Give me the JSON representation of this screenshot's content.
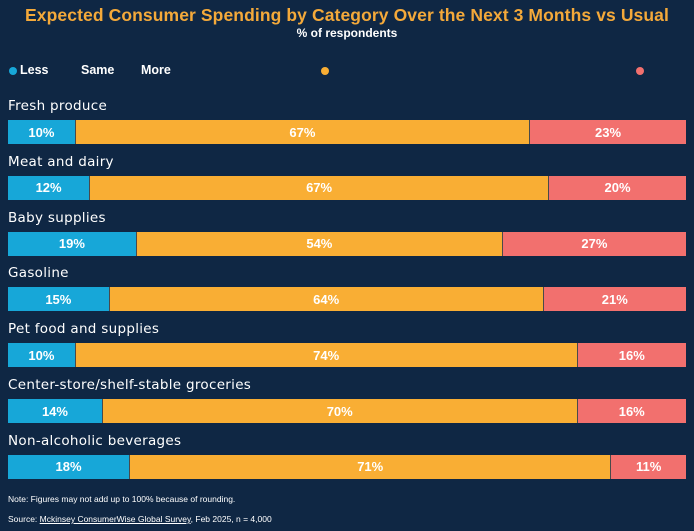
{
  "header": {
    "title": "Expected Consumer Spending by Category Over the Next 3 Months vs Usual",
    "subtitle": "% of respondents"
  },
  "legend": {
    "less": "Less",
    "same": "Same",
    "more": "More"
  },
  "colors": {
    "background": "#0f2744",
    "less": "#17a7d8",
    "same": "#f9ae34",
    "more": "#f2706e",
    "title": "#f4a93a"
  },
  "chart_data": {
    "type": "bar",
    "orientation": "horizontal",
    "stacked": true,
    "title": "Expected Consumer Spending by Category Over the Next 3 Months vs Usual",
    "subtitle": "% of respondents",
    "categories": [
      "Fresh produce",
      "Meat and dairy",
      "Baby supplies",
      "Gasoline",
      "Pet food and supplies",
      "Center-store/shelf-stable groceries",
      "Non-alcoholic beverages"
    ],
    "series": [
      {
        "name": "Less",
        "values": [
          10,
          12,
          19,
          15,
          10,
          14,
          18
        ]
      },
      {
        "name": "Same",
        "values": [
          67,
          67,
          54,
          64,
          74,
          70,
          71
        ]
      },
      {
        "name": "More",
        "values": [
          23,
          20,
          27,
          21,
          16,
          16,
          11
        ]
      }
    ],
    "value_labels": [
      [
        "10%",
        "67%",
        "23%"
      ],
      [
        "12%",
        "67%",
        "20%"
      ],
      [
        "19%",
        "54%",
        "27%"
      ],
      [
        "15%",
        "64%",
        "21%"
      ],
      [
        "10%",
        "74%",
        "16%"
      ],
      [
        "14%",
        "70%",
        "16%"
      ],
      [
        "18%",
        "71%",
        "11%"
      ]
    ],
    "legend_position": "top-left",
    "grid": false
  },
  "footer": {
    "note": "Note: Figures may not add up to 100% because of rounding.",
    "source_prefix": "Source: ",
    "source_link": "Mckinsey ConsumerWise Global Survey",
    "source_suffix": ", Feb 2025, n = 4,000"
  }
}
